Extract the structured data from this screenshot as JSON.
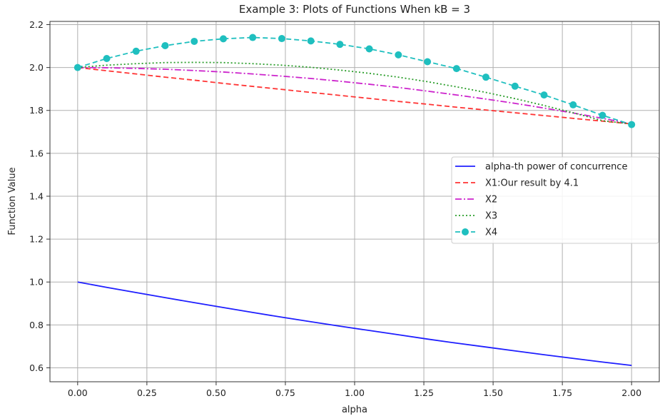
{
  "chart_data": {
    "type": "line",
    "title": "Example 3: Plots of Functions When kB = 3",
    "xlabel": "alpha",
    "ylabel": "Function Value",
    "xlim": [
      -0.1,
      2.1
    ],
    "ylim": [
      0.535,
      2.215
    ],
    "xticks": [
      0.0,
      0.25,
      0.5,
      0.75,
      1.0,
      1.25,
      1.5,
      1.75,
      2.0
    ],
    "xtick_labels": [
      "0.00",
      "0.25",
      "0.50",
      "0.75",
      "1.00",
      "1.25",
      "1.50",
      "1.75",
      "2.00"
    ],
    "yticks": [
      0.6,
      0.8,
      1.0,
      1.2,
      1.4,
      1.6,
      1.8,
      2.0,
      2.2
    ],
    "ytick_labels": [
      "0.6",
      "0.8",
      "1.0",
      "1.2",
      "1.4",
      "1.6",
      "1.8",
      "2.0",
      "2.2"
    ],
    "grid": true,
    "legend_position": "center-right",
    "x": [
      0.0,
      0.105,
      0.211,
      0.316,
      0.421,
      0.526,
      0.632,
      0.737,
      0.842,
      0.947,
      1.053,
      1.158,
      1.263,
      1.368,
      1.474,
      1.579,
      1.684,
      1.789,
      1.895,
      2.0
    ],
    "series": [
      {
        "name": "alpha-th power of concurrence",
        "color": "#1f1fff",
        "dash": "solid",
        "marker": "none",
        "values": [
          1.0,
          0.975,
          0.951,
          0.927,
          0.904,
          0.881,
          0.858,
          0.836,
          0.815,
          0.794,
          0.774,
          0.754,
          0.734,
          0.715,
          0.697,
          0.679,
          0.661,
          0.644,
          0.627,
          0.611
        ]
      },
      {
        "name": "X1:Our result by 4.1",
        "color": "#ff3333",
        "dash": "dashed",
        "marker": "none",
        "values": [
          2.0,
          1.985,
          1.97,
          1.955,
          1.941,
          1.926,
          1.912,
          1.898,
          1.884,
          1.87,
          1.856,
          1.842,
          1.829,
          1.815,
          1.802,
          1.789,
          1.776,
          1.763,
          1.75,
          1.737
        ]
      },
      {
        "name": "X2",
        "color": "#cc22cc",
        "dash": "dashdot",
        "marker": "none",
        "values": [
          2.0,
          1.999,
          1.996,
          1.992,
          1.986,
          1.979,
          1.97,
          1.96,
          1.949,
          1.936,
          1.922,
          1.907,
          1.89,
          1.872,
          1.853,
          1.833,
          1.811,
          1.788,
          1.763,
          1.737
        ]
      },
      {
        "name": "X3",
        "color": "#2a9d2a",
        "dash": "dotted",
        "marker": "none",
        "values": [
          2.0,
          2.011,
          2.018,
          2.023,
          2.024,
          2.023,
          2.018,
          2.011,
          2.001,
          1.988,
          1.973,
          1.955,
          1.934,
          1.91,
          1.884,
          1.855,
          1.823,
          1.789,
          1.752,
          1.737
        ]
      },
      {
        "name": "X4",
        "color": "#1fbfbf",
        "dash": "dashed",
        "marker": "circle",
        "values": [
          2.0,
          2.042,
          2.076,
          2.102,
          2.122,
          2.134,
          2.14,
          2.135,
          2.124,
          2.108,
          2.087,
          2.059,
          2.027,
          1.995,
          1.955,
          1.913,
          1.872,
          1.826,
          1.777,
          1.734
        ]
      }
    ]
  }
}
